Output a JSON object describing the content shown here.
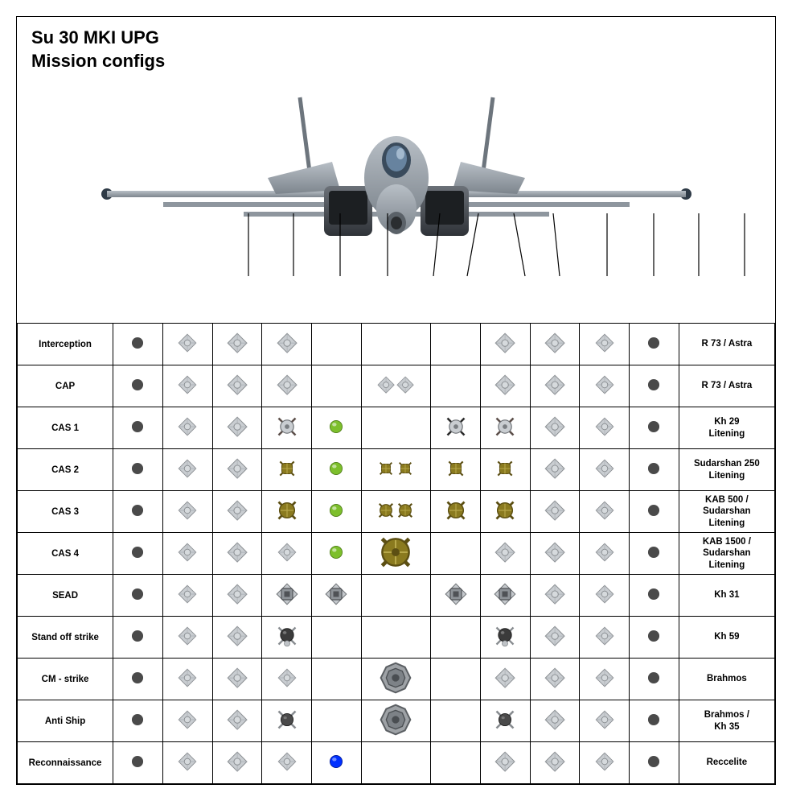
{
  "title_line1": "Su 30 MKI UPG",
  "title_line2": "Mission configs",
  "colors": {
    "dark_dot": "#4a4a4a",
    "missile_body": "#c9cdd1",
    "missile_outline": "#888c90",
    "pod_green": "#7dbf2c",
    "pod_blue": "#0030ff",
    "olive_fill": "#8a7a1f",
    "olive_dark": "#5c4f13",
    "kh31_fill": "#9fa3a8",
    "kh31_dark": "#4f5256",
    "kh59_ball": "#3b3b3b",
    "kh35_ball": "#4a4a4a",
    "cm_fill": "#9ea2a6",
    "cm_dark": "#5b5f63",
    "pylon_line": "#000000"
  },
  "pylon_x_positions": [
    206,
    262,
    320,
    379,
    436,
    514,
    593,
    652,
    710,
    766,
    823
  ],
  "rows": [
    {
      "mission": "Interception",
      "weapon": "R 73 / Astra",
      "cells": [
        "dot",
        "x",
        "xx",
        "xx",
        "",
        "",
        "",
        "xx",
        "xx",
        "x",
        "dot"
      ]
    },
    {
      "mission": "CAP",
      "weapon": "R 73 / Astra",
      "cells": [
        "dot",
        "x",
        "xx",
        "xx",
        "",
        "pair-xx",
        "",
        "xx",
        "xx",
        "x",
        "dot"
      ]
    },
    {
      "mission": "CAS 1",
      "weapon": "Kh 29\nLitening",
      "cells": [
        "dot",
        "x",
        "xx",
        "kh29",
        "podg",
        "",
        "kh29b",
        "kh29",
        "xx",
        "x",
        "dot"
      ]
    },
    {
      "mission": "CAS 2",
      "weapon": "Sudarshan 250\nLitening",
      "cells": [
        "dot",
        "x",
        "xx",
        "b250",
        "podg",
        "pair-b250",
        "b250",
        "b250",
        "xx",
        "x",
        "dot"
      ]
    },
    {
      "mission": "CAS 3",
      "weapon": "KAB 500 /\nSudarshan\nLitening",
      "cells": [
        "dot",
        "x",
        "xx",
        "b500",
        "podg",
        "pair-b500",
        "b500",
        "b500",
        "xx",
        "x",
        "dot"
      ]
    },
    {
      "mission": "CAS 4",
      "weapon": "KAB 1500 /\nSudarshan\nLitening",
      "cells": [
        "dot",
        "x",
        "xx",
        "x",
        "podg",
        "b1500",
        "",
        "xx",
        "xx",
        "x",
        "dot"
      ]
    },
    {
      "mission": "SEAD",
      "weapon": "Kh 31",
      "cells": [
        "dot",
        "x",
        "xx",
        "kh31",
        "kh31",
        "",
        "kh31",
        "kh31",
        "xx",
        "x",
        "dot"
      ]
    },
    {
      "mission": "Stand off strike",
      "weapon": "Kh 59",
      "cells": [
        "dot",
        "x",
        "xx",
        "kh59",
        "",
        "",
        "",
        "kh59",
        "xx",
        "x",
        "dot"
      ]
    },
    {
      "mission": "CM - strike",
      "weapon": "Brahmos",
      "cells": [
        "dot",
        "x",
        "xx",
        "x",
        "",
        "cm",
        "",
        "xx",
        "xx",
        "x",
        "dot"
      ]
    },
    {
      "mission": "Anti Ship",
      "weapon": "Brahmos /\nKh 35",
      "cells": [
        "dot",
        "x",
        "xx",
        "kh35",
        "",
        "cm",
        "",
        "kh35",
        "xx",
        "x",
        "dot"
      ]
    },
    {
      "mission": "Reconnaissance",
      "weapon": "Reccelite",
      "cells": [
        "dot",
        "x",
        "xx",
        "x",
        "podb",
        "",
        "",
        "xx",
        "xx",
        "x",
        "dot"
      ]
    }
  ]
}
